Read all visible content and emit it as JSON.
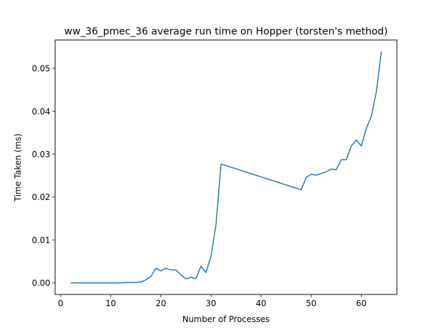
{
  "chart_data": {
    "type": "line",
    "title": "ww_36_pmec_36 average run time on Hopper (torsten's method)",
    "xlabel": "Number of Processes",
    "ylabel": "Time Taken (ms)",
    "xlim": [
      -1.1,
      67.1
    ],
    "ylim": [
      -0.0027,
      0.0566
    ],
    "xticks": [
      0,
      10,
      20,
      30,
      40,
      50,
      60
    ],
    "xtick_labels": [
      "0",
      "10",
      "20",
      "30",
      "40",
      "50",
      "60"
    ],
    "yticks": [
      0.0,
      0.01,
      0.02,
      0.03,
      0.04,
      0.05
    ],
    "ytick_labels": [
      "0.00",
      "0.01",
      "0.02",
      "0.03",
      "0.04",
      "0.05"
    ],
    "grid": false,
    "series": [
      {
        "color": "#1f77b4",
        "x": [
          2,
          3,
          4,
          5,
          6,
          7,
          8,
          9,
          10,
          11,
          12,
          13,
          14,
          15,
          16,
          17,
          18,
          19,
          20,
          21,
          22,
          23,
          24,
          25,
          26,
          27,
          28,
          29,
          30,
          31,
          32,
          48,
          49,
          50,
          51,
          52,
          53,
          54,
          55,
          56,
          57,
          58,
          59,
          60,
          61,
          62,
          63,
          64
        ],
        "y": [
          0.0,
          0.0,
          0.0,
          0.0,
          0.0,
          0.0,
          0.0,
          0.0,
          0.0,
          0.0,
          0.0,
          0.0001,
          0.0001,
          0.0001,
          0.0002,
          0.0007,
          0.0015,
          0.0034,
          0.0028,
          0.0034,
          0.003,
          0.003,
          0.0019,
          0.0009,
          0.0013,
          0.001,
          0.0039,
          0.0024,
          0.0062,
          0.0135,
          0.0277,
          0.0217,
          0.0246,
          0.0253,
          0.0251,
          0.0255,
          0.0259,
          0.0265,
          0.0264,
          0.0287,
          0.0287,
          0.0319,
          0.0333,
          0.0319,
          0.036,
          0.0389,
          0.0445,
          0.0539
        ]
      }
    ]
  }
}
